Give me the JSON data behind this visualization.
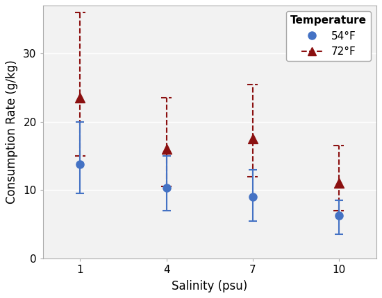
{
  "salinity": [
    1,
    4,
    7,
    10
  ],
  "blue_mean": [
    13.8,
    10.3,
    9.0,
    6.3
  ],
  "blue_lo": [
    9.5,
    7.0,
    5.5,
    3.5
  ],
  "blue_hi": [
    20.0,
    15.0,
    13.0,
    8.5
  ],
  "red_mean": [
    23.5,
    16.0,
    17.5,
    11.0
  ],
  "red_lo": [
    15.0,
    10.5,
    12.0,
    7.0
  ],
  "red_hi": [
    36.0,
    23.5,
    25.5,
    16.5
  ],
  "blue_color": "#4472C4",
  "red_color": "#8B1010",
  "xlabel": "Salinity (psu)",
  "ylabel": "Consumption Rate (g/kg)",
  "legend_title": "Temperature",
  "legend_label_blue": "54°F",
  "legend_label_red": "72°F",
  "ylim": [
    0,
    37
  ],
  "yticks": [
    0,
    10,
    20,
    30
  ],
  "xticks": [
    1,
    4,
    7,
    10
  ],
  "bg_color": "#FFFFFF",
  "panel_bg": "#F2F2F2",
  "grid_color": "#FFFFFF"
}
